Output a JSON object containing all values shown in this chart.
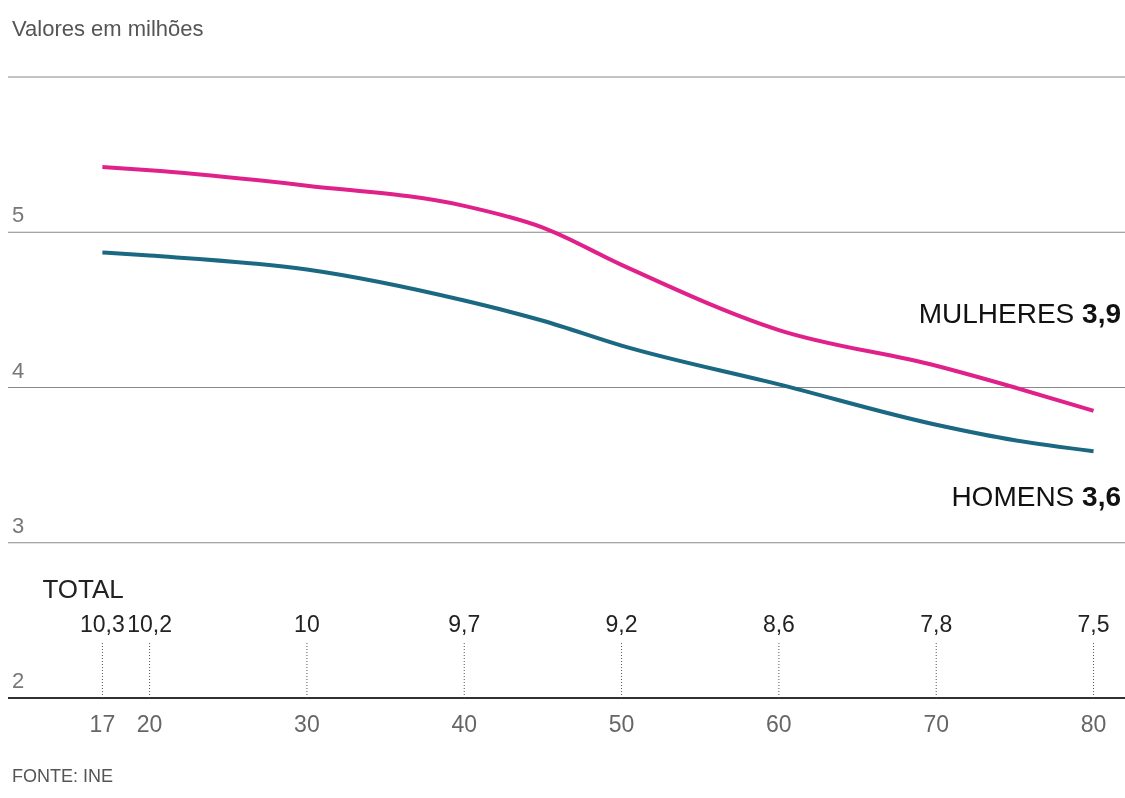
{
  "chart_data": {
    "type": "line",
    "ylabel": "Valores em milhões",
    "x": [
      17,
      20,
      30,
      40,
      45,
      50,
      60,
      70,
      75,
      80
    ],
    "series": [
      {
        "name": "MULHERES",
        "color": "#e0218a",
        "values": [
          5.42,
          5.4,
          5.3,
          5.17,
          5.03,
          4.79,
          4.37,
          4.14,
          4.0,
          3.85
        ],
        "value_labels": [
          null,
          null,
          null,
          null,
          null,
          null,
          null,
          null,
          null,
          "3,9"
        ]
      },
      {
        "name": "HOMENS",
        "color": "#1b6882",
        "values": [
          4.87,
          4.85,
          4.76,
          4.56,
          4.43,
          4.27,
          4.02,
          3.76,
          3.66,
          3.59
        ],
        "value_labels": [
          null,
          null,
          null,
          null,
          null,
          null,
          null,
          null,
          null,
          "3,6"
        ]
      }
    ],
    "xlim": [
      11,
      82
    ],
    "xticks": [
      17,
      20,
      30,
      40,
      50,
      60,
      70,
      80
    ],
    "ylim": [
      2,
      6
    ],
    "yticks": [
      2,
      3,
      4,
      5,
      {
        "value": 6,
        "label": null
      }
    ],
    "grid": "y",
    "legend": false,
    "marker": "none",
    "line_style": "solid",
    "annotations": [
      "TOTAL",
      {
        "text": "10,3",
        "x": 17
      },
      {
        "text": "10,2",
        "x": 20
      },
      {
        "text": "10",
        "x": 30
      },
      {
        "text": "9,7",
        "x": 40
      },
      {
        "text": "9,2",
        "x": 50
      },
      {
        "text": "8,6",
        "x": 60
      },
      {
        "text": "7,8",
        "x": 70
      },
      {
        "text": "7,5",
        "x": 80
      },
      "FONTE: INE"
    ]
  }
}
